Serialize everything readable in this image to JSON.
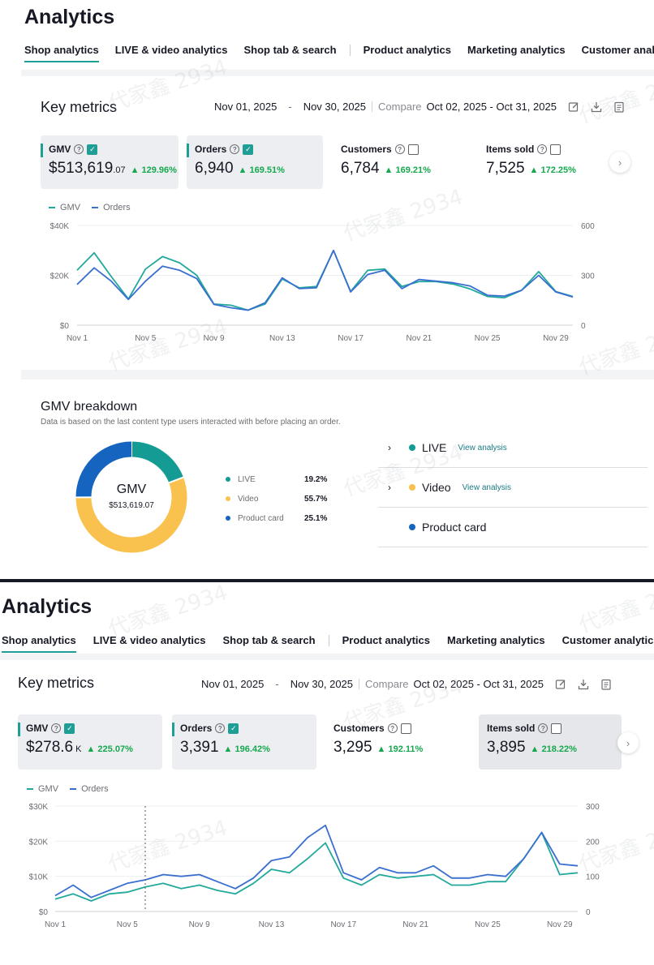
{
  "colors": {
    "accent": "#1f9e96",
    "gmv_line": "#22a99c",
    "orders_line": "#3a6fd0",
    "positive": "#15a84d",
    "live": "#139b94",
    "video": "#f9c24e",
    "product_card": "#1565c0"
  },
  "watermark_text": "代家鑫 2934",
  "panel1": {
    "title": "Analytics",
    "tabs": [
      "Shop analytics",
      "LIVE & video analytics",
      "Shop tab & search",
      "Product analytics",
      "Marketing analytics",
      "Customer analytics"
    ],
    "key_metrics": {
      "title": "Key metrics",
      "date_start": "Nov 01, 2025",
      "date_sep": "-",
      "date_end": "Nov 30, 2025",
      "compare_label": "Compare",
      "compare_range": "Oct 02, 2025 - Oct 31, 2025",
      "metrics": [
        {
          "label": "GMV",
          "currency": "$",
          "value": "513,619",
          "small": ".07",
          "change": "129.96%",
          "checked": true
        },
        {
          "label": "Orders",
          "value": "6,940",
          "change": "169.51%",
          "checked": true
        },
        {
          "label": "Customers",
          "value": "6,784",
          "change": "169.21%",
          "checked": false
        },
        {
          "label": "Items sold",
          "value": "7,525",
          "change": "172.25%",
          "checked": false
        }
      ],
      "legend": [
        "GMV",
        "Orders"
      ]
    },
    "chart_data": {
      "type": "line",
      "x": [
        "Nov 1",
        "Nov 2",
        "Nov 3",
        "Nov 4",
        "Nov 5",
        "Nov 6",
        "Nov 7",
        "Nov 8",
        "Nov 9",
        "Nov 10",
        "Nov 11",
        "Nov 12",
        "Nov 13",
        "Nov 14",
        "Nov 15",
        "Nov 16",
        "Nov 17",
        "Nov 18",
        "Nov 19",
        "Nov 20",
        "Nov 21",
        "Nov 22",
        "Nov 23",
        "Nov 24",
        "Nov 25",
        "Nov 26",
        "Nov 27",
        "Nov 28",
        "Nov 29",
        "Nov 30"
      ],
      "xticks": [
        "Nov 1",
        "Nov 5",
        "Nov 9",
        "Nov 13",
        "Nov 17",
        "Nov 21",
        "Nov 25",
        "Nov 29"
      ],
      "y_left_ticks": [
        "$0",
        "$20K",
        "$40K"
      ],
      "y_right_ticks": [
        "0",
        "300",
        "600"
      ],
      "ylim_left": [
        0,
        40000
      ],
      "ylim_right": [
        0,
        600
      ],
      "series": [
        {
          "name": "GMV",
          "axis": "left",
          "values": [
            22000,
            29000,
            19500,
            10500,
            22500,
            27500,
            25000,
            20000,
            8500,
            8000,
            6000,
            8500,
            18500,
            15000,
            15500,
            30000,
            13500,
            22000,
            22500,
            15500,
            17500,
            17500,
            16500,
            14500,
            11500,
            11000,
            14000,
            21500,
            13500,
            11500
          ]
        },
        {
          "name": "Orders",
          "axis": "right",
          "values": [
            245,
            345,
            265,
            155,
            265,
            355,
            330,
            280,
            125,
            105,
            90,
            135,
            285,
            220,
            225,
            450,
            200,
            305,
            330,
            220,
            275,
            265,
            255,
            235,
            180,
            175,
            210,
            300,
            200,
            170
          ]
        }
      ]
    },
    "gmv_breakdown": {
      "title": "GMV breakdown",
      "subtitle": "Data is based on the last content type users interacted with before placing an order.",
      "center_label": "GMV",
      "center_value": "$513,619.07",
      "chart_data": {
        "type": "pie",
        "labels": [
          "LIVE",
          "Video",
          "Product card"
        ],
        "values": [
          19.2,
          55.7,
          25.1
        ],
        "pct_labels": [
          "19.2%",
          "55.7%",
          "25.1%"
        ]
      },
      "channels": [
        {
          "name": "LIVE",
          "link": "View analysis",
          "expandable": true
        },
        {
          "name": "Video",
          "link": "View analysis",
          "expandable": true
        },
        {
          "name": "Product card",
          "link": "",
          "expandable": false
        }
      ]
    }
  },
  "panel2": {
    "title": "Analytics",
    "tabs": [
      "Shop analytics",
      "LIVE & video analytics",
      "Shop tab & search",
      "Product analytics",
      "Marketing analytics",
      "Customer analytics"
    ],
    "key_metrics": {
      "title": "Key metrics",
      "date_start": "Nov 01, 2025",
      "date_sep": "-",
      "date_end": "Nov 30, 2025",
      "compare_label": "Compare",
      "compare_range": "Oct 02, 2025 - Oct 31, 2025",
      "metrics": [
        {
          "label": "GMV",
          "currency": "$",
          "value": "278.6",
          "small": "K",
          "change": "225.07%",
          "checked": true
        },
        {
          "label": "Orders",
          "value": "3,391",
          "change": "196.42%",
          "checked": true
        },
        {
          "label": "Customers",
          "value": "3,295",
          "change": "192.11%",
          "checked": false
        },
        {
          "label": "Items sold",
          "value": "3,895",
          "change": "218.22%",
          "checked": false
        }
      ],
      "legend": [
        "GMV",
        "Orders"
      ]
    },
    "chart_data": {
      "type": "line",
      "x": [
        "Nov 1",
        "Nov 2",
        "Nov 3",
        "Nov 4",
        "Nov 5",
        "Nov 6",
        "Nov 7",
        "Nov 8",
        "Nov 9",
        "Nov 10",
        "Nov 11",
        "Nov 12",
        "Nov 13",
        "Nov 14",
        "Nov 15",
        "Nov 16",
        "Nov 17",
        "Nov 18",
        "Nov 19",
        "Nov 20",
        "Nov 21",
        "Nov 22",
        "Nov 23",
        "Nov 24",
        "Nov 25",
        "Nov 26",
        "Nov 27",
        "Nov 28",
        "Nov 29",
        "Nov 30"
      ],
      "xticks": [
        "Nov 1",
        "Nov 5",
        "Nov 9",
        "Nov 13",
        "Nov 17",
        "Nov 21",
        "Nov 25",
        "Nov 29"
      ],
      "y_left_ticks": [
        "$0",
        "$10K",
        "$20K",
        "$30K"
      ],
      "y_right_ticks": [
        "0",
        "100",
        "200",
        "300"
      ],
      "ylim_left": [
        0,
        30000
      ],
      "ylim_right": [
        0,
        300
      ],
      "series": [
        {
          "name": "GMV",
          "axis": "left",
          "values": [
            3500,
            5000,
            3000,
            5000,
            5500,
            7000,
            8000,
            6500,
            7500,
            6000,
            5000,
            8000,
            12000,
            11000,
            15000,
            19500,
            9500,
            7500,
            10500,
            9500,
            10000,
            10500,
            7500,
            7500,
            8500,
            8500,
            15000,
            22500,
            10500,
            11000
          ]
        },
        {
          "name": "Orders",
          "axis": "right",
          "values": [
            45,
            75,
            40,
            60,
            80,
            90,
            105,
            100,
            105,
            85,
            65,
            95,
            145,
            155,
            210,
            245,
            110,
            90,
            125,
            110,
            110,
            130,
            95,
            95,
            105,
            100,
            150,
            225,
            135,
            130
          ]
        }
      ]
    }
  }
}
